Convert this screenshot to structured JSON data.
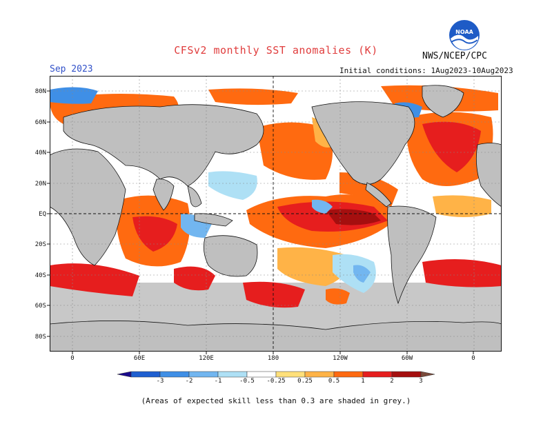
{
  "header": {
    "title": "CFSv2 monthly SST anomalies (K)",
    "organization": "NWS/NCEP/CPC",
    "valid_month": "Sep 2023",
    "initial_conditions": "Initial conditions: 1Aug2023-10Aug2023",
    "logo_text": "NOAA"
  },
  "axes": {
    "lat_labels": [
      "80N",
      "60N",
      "40N",
      "20N",
      "EQ",
      "20S",
      "40S",
      "60S",
      "80S"
    ],
    "lon_labels": [
      "0",
      "60E",
      "120E",
      "180",
      "120W",
      "60W",
      "0"
    ]
  },
  "colorbar": {
    "labels": [
      "-3",
      "-2",
      "-1",
      "-0.5",
      "-0.25",
      "0.25",
      "0.5",
      "1",
      "2",
      "3"
    ],
    "colors": [
      "#1a0a8c",
      "#1e5fd0",
      "#3f8fe6",
      "#72b6f0",
      "#aee0f5",
      "#ffffff",
      "#ffe07a",
      "#ffb347",
      "#ff6a10",
      "#e61e1e",
      "#a50f0f",
      "#7a4a3a"
    ]
  },
  "footnote": "(Areas of expected skill less than 0.3 are shaded in grey.)",
  "colors": {
    "land": "#bfbfbf",
    "low_skill": "#c8c8c8",
    "ocean_neutral": "#ffffff",
    "title": "#e03c3c",
    "valid_month": "#3050c8"
  }
}
